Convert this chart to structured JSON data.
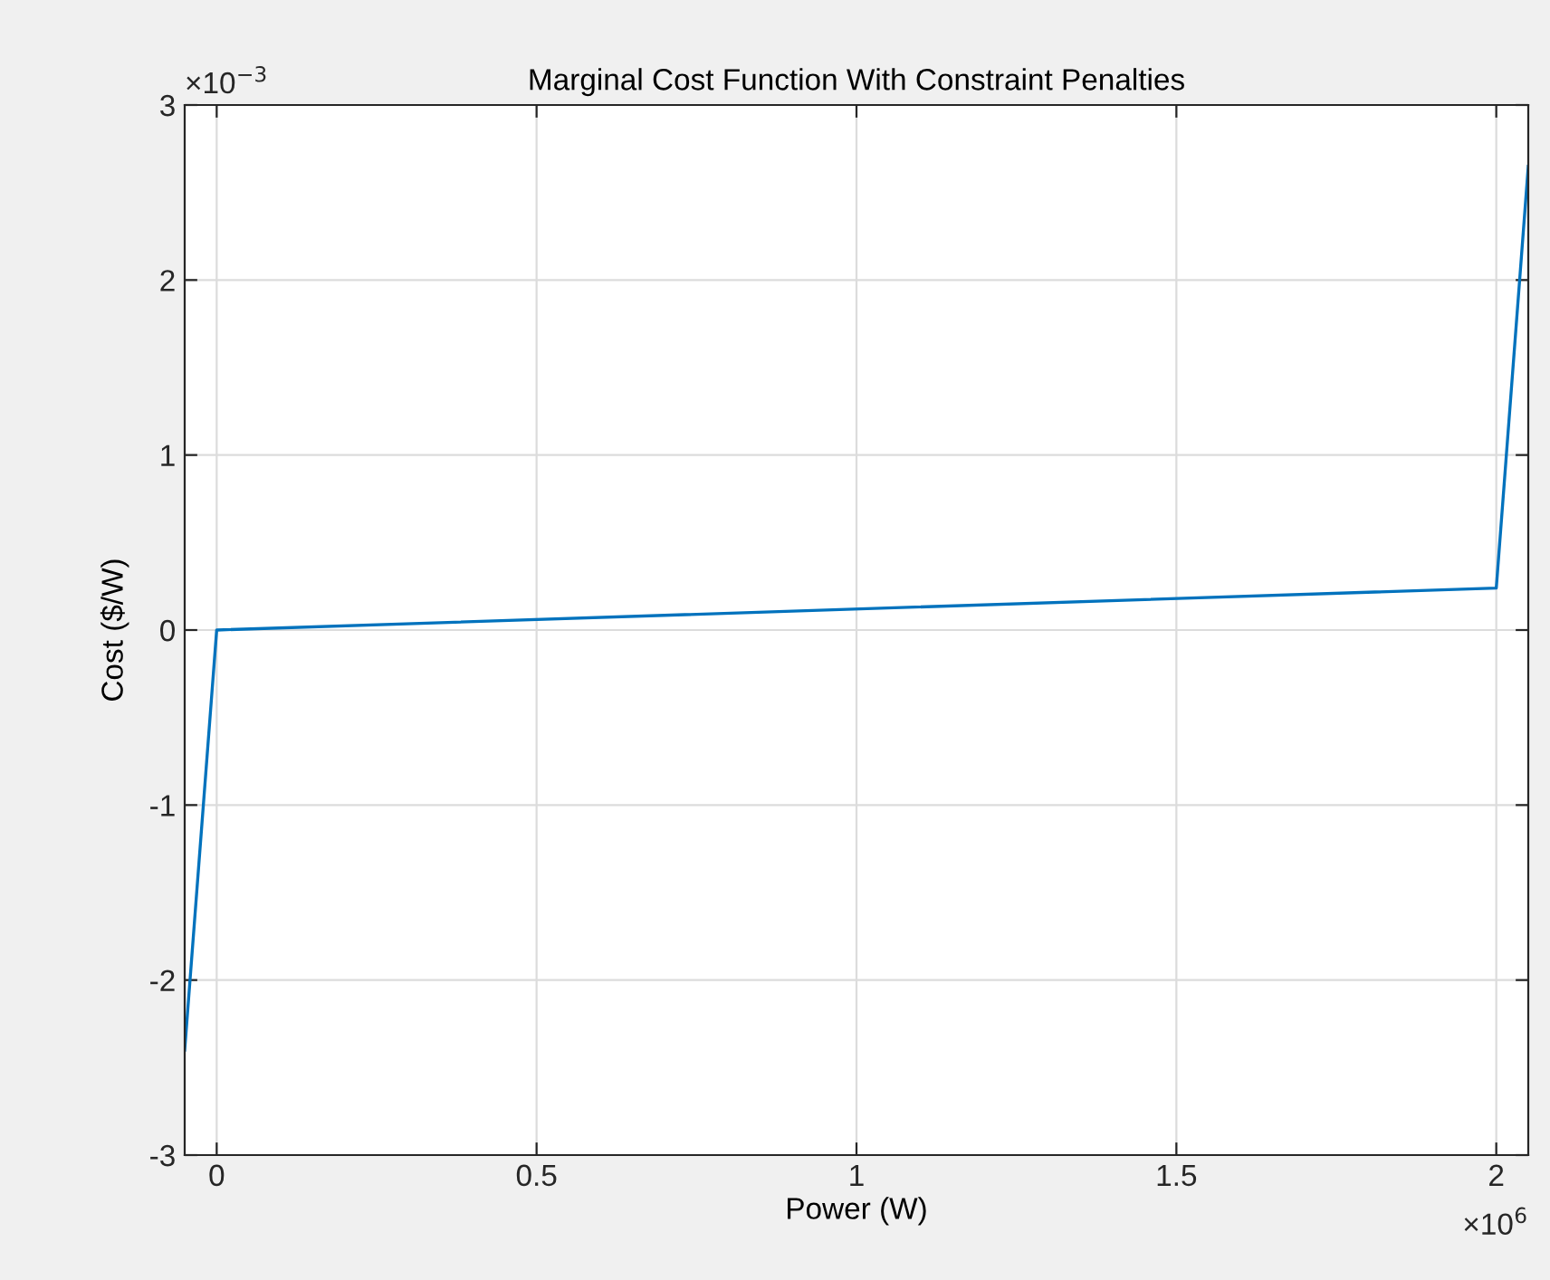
{
  "chart_data": {
    "type": "line",
    "title": "Marginal Cost Function With Constraint Penalties",
    "xlabel": "Power (W)",
    "ylabel": "Cost ($/W)",
    "x": [
      -0.05,
      0,
      2.0,
      2.05
    ],
    "series": [
      {
        "color": "#0072bd",
        "values": [
          -2.4,
          0,
          0.24,
          2.65
        ]
      }
    ],
    "xlim": [
      -0.05,
      2.05
    ],
    "xticks": [
      0,
      0.5,
      1,
      1.5,
      2
    ],
    "ylim": [
      -3,
      3
    ],
    "yticks": [
      -3,
      -2,
      -1,
      0,
      1,
      2,
      3
    ],
    "annotations": [
      "×10$^{6}$",
      "×10$^{−3}$"
    ],
    "grid": true,
    "marker": "none",
    "line_style": "solid"
  }
}
